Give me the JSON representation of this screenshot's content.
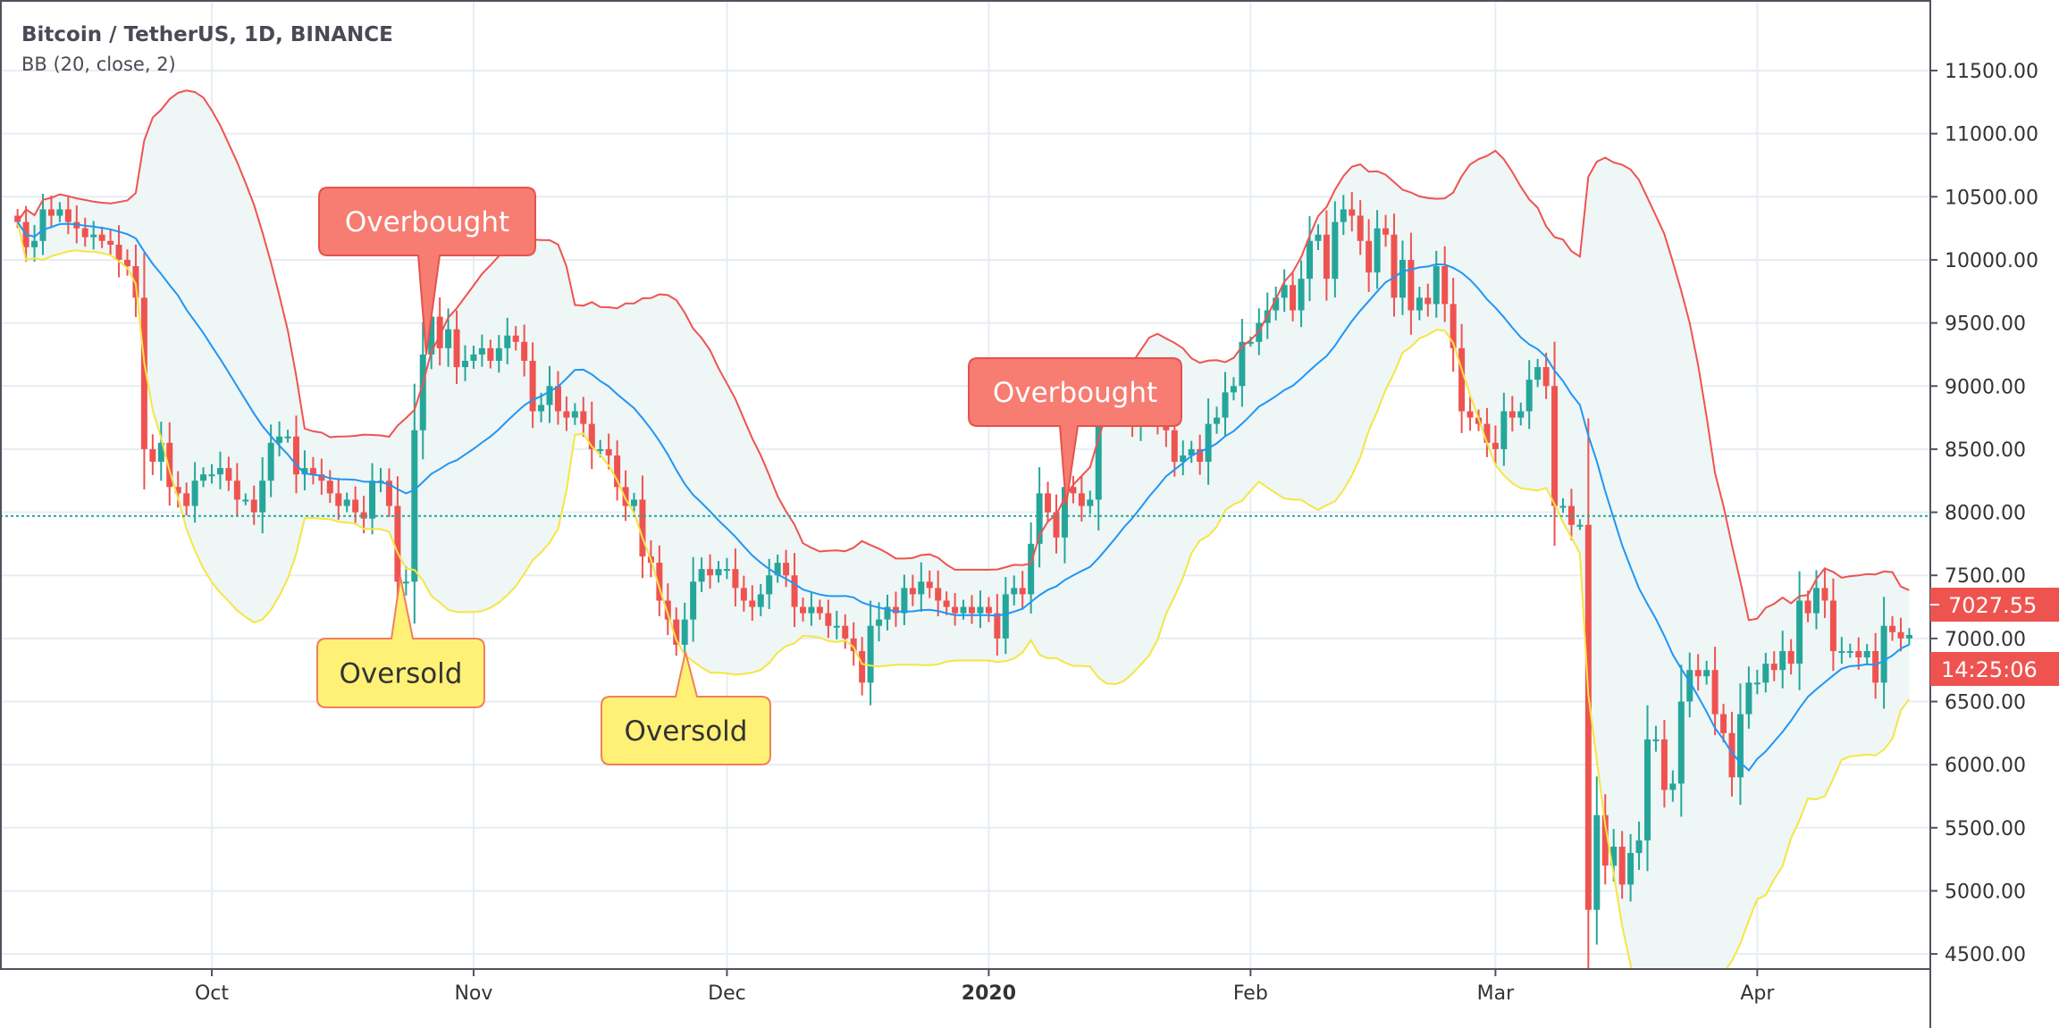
{
  "header": {
    "title": "Bitcoin / TetherUS, 1D, BINANCE",
    "indicator": "BB (20, close, 2)"
  },
  "price_tag": {
    "price": "7027.55",
    "countdown": "14:25:06"
  },
  "annotations": [
    {
      "label": "Overbought",
      "kind": "overbought"
    },
    {
      "label": "Overbought",
      "kind": "overbought"
    },
    {
      "label": "Oversold",
      "kind": "oversold"
    },
    {
      "label": "Oversold",
      "kind": "oversold"
    }
  ],
  "colors": {
    "up": "#26a69a",
    "down": "#ef5350",
    "basis": "#2196f3",
    "upper": "#ef5350",
    "lower": "#f5e642",
    "band_fill": "#eef6f6",
    "overbought_fill": "#f77c72",
    "overbought_border": "#e5534b",
    "oversold_fill": "#fff176",
    "oversold_border": "#f0805a",
    "grid": "#e6edf3",
    "price_line": "#26a69a"
  },
  "chart_data": {
    "type": "candlestick",
    "title": "Bitcoin / TetherUS, 1D, BINANCE",
    "start_date": "2019-09-08",
    "interval": "1D",
    "bollinger": {
      "length": 20,
      "source": "close",
      "stddev": 2
    },
    "closes": [
      10300,
      10100,
      10150,
      10400,
      10350,
      10400,
      10300,
      10250,
      10180,
      10200,
      10150,
      10120,
      10000,
      9950,
      9700,
      8500,
      8400,
      8550,
      8200,
      8150,
      8050,
      8250,
      8300,
      8300,
      8350,
      8250,
      8100,
      8100,
      8000,
      8250,
      8550,
      8600,
      8600,
      8300,
      8350,
      8300,
      8250,
      8150,
      8050,
      8100,
      8000,
      7950,
      8250,
      8250,
      8050,
      7450,
      7450,
      8650,
      9250,
      9550,
      9300,
      9450,
      9150,
      9200,
      9250,
      9300,
      9200,
      9300,
      9400,
      9350,
      9200,
      8800,
      8850,
      9000,
      8800,
      8750,
      8800,
      8700,
      8500,
      8500,
      8450,
      8200,
      8050,
      8100,
      7650,
      7600,
      7300,
      7150,
      6950,
      7150,
      7450,
      7550,
      7500,
      7550,
      7550,
      7400,
      7300,
      7250,
      7350,
      7500,
      7600,
      7500,
      7250,
      7200,
      7250,
      7200,
      7100,
      7100,
      7000,
      6900,
      6650,
      7100,
      7150,
      7250,
      7200,
      7400,
      7350,
      7450,
      7400,
      7300,
      7250,
      7200,
      7250,
      7200,
      7250,
      7200,
      7000,
      7350,
      7400,
      7350,
      7750,
      8150,
      8000,
      7800,
      8200,
      8150,
      8050,
      8100,
      8800,
      8850,
      8850,
      8900,
      8700,
      8900,
      9000,
      8750,
      8650,
      8400,
      8450,
      8500,
      8400,
      8700,
      8750,
      8950,
      9000,
      9350,
      9350,
      9500,
      9600,
      9700,
      9800,
      9600,
      9850,
      10150,
      10200,
      9850,
      10300,
      10400,
      10350,
      10150,
      9900,
      10250,
      10200,
      9700,
      10000,
      9600,
      9700,
      9650,
      9950,
      9650,
      9300,
      8800,
      8750,
      8700,
      8550,
      8500,
      8800,
      8750,
      8800,
      9050,
      9150,
      9000,
      8050,
      8050,
      7900,
      7900,
      4850,
      5600,
      5200,
      5350,
      5050,
      5300,
      5400,
      6200,
      6200,
      5800,
      5850,
      6500,
      6750,
      6700,
      6750,
      6400,
      6250,
      5900,
      6400,
      6650,
      6650,
      6800,
      6750,
      6900,
      6800,
      7300,
      7200,
      7400,
      7300,
      6900,
      6900,
      6900,
      6850,
      6900,
      6650,
      7100,
      7050,
      7000,
      7027.55
    ],
    "y_ticks": [
      "11500.00",
      "11000.00",
      "10500.00",
      "10000.00",
      "9500.00",
      "9000.00",
      "8500.00",
      "8000.00",
      "7500.00",
      "7000.00",
      "6500.00",
      "6000.00",
      "5500.00",
      "5000.00",
      "4500.00"
    ],
    "y_tick_values": [
      11500,
      11000,
      10500,
      10000,
      9500,
      9000,
      8500,
      8000,
      7500,
      7000,
      6500,
      6000,
      5500,
      5000,
      4500
    ],
    "x_ticks": [
      {
        "label": "Oct",
        "date_index": 23,
        "bold": false
      },
      {
        "label": "Nov",
        "date_index": 54,
        "bold": false
      },
      {
        "label": "Dec",
        "date_index": 84,
        "bold": false
      },
      {
        "label": "2020",
        "date_index": 115,
        "bold": true
      },
      {
        "label": "Feb",
        "date_index": 146,
        "bold": false
      },
      {
        "label": "Mar",
        "date_index": 175,
        "bold": false
      },
      {
        "label": "Apr",
        "date_index": 206,
        "bold": false
      }
    ],
    "ylim": [
      4400,
      11950
    ],
    "price_line": 7970,
    "last_price": 7027.55
  }
}
